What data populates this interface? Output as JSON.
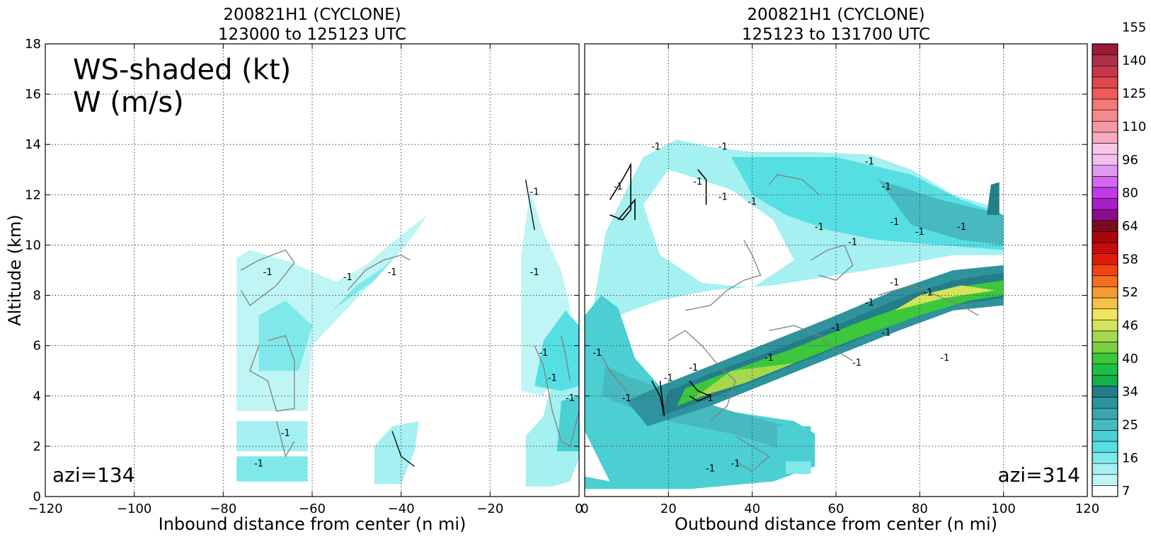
{
  "chart_data": [
    {
      "type": "heatmap",
      "title": "200821H1 (CYCLONE)",
      "subtitle": "123000 to 125123 UTC",
      "xlabel": "Inbound distance from center (n mi)",
      "ylabel": "Altitude (km)",
      "xlim": [
        -120,
        0
      ],
      "ylim": [
        0,
        18
      ],
      "x_ticks": [
        -120,
        -100,
        -80,
        -60,
        -40,
        -20,
        0
      ],
      "y_ticks": [
        0,
        2,
        4,
        6,
        8,
        10,
        12,
        14,
        16,
        18
      ],
      "grid": true,
      "annotations": [
        "WS-shaded (kt)",
        "W (m/s)",
        "azi=134"
      ],
      "contour_labels": [
        "-1",
        "1"
      ],
      "regions": [
        {
          "name": "inner-echo",
          "x": [
            -8,
            0
          ],
          "y": [
            0.4,
            7.5
          ],
          "level": 16
        },
        {
          "name": "left-column",
          "x": [
            -77,
            -61
          ],
          "y": [
            0.6,
            9.8
          ],
          "level": 10
        },
        {
          "name": "middle-patch",
          "x": [
            -60,
            -38
          ],
          "y": [
            5.8,
            11.2
          ],
          "level": 10
        },
        {
          "name": "lower-fragment",
          "x": [
            -46,
            -36
          ],
          "y": [
            0.5,
            3.0
          ],
          "level": 13
        }
      ]
    },
    {
      "type": "heatmap",
      "title": "200821H1 (CYCLONE)",
      "subtitle": "125123 to 131700 UTC",
      "xlabel": "Outbound distance from center (n mi)",
      "ylabel": "",
      "xlim": [
        0,
        120
      ],
      "ylim": [
        0,
        18
      ],
      "x_ticks": [
        0,
        20,
        40,
        60,
        80,
        100,
        120
      ],
      "y_ticks": [
        0,
        2,
        4,
        6,
        8,
        10,
        12,
        14,
        16,
        18
      ],
      "grid": true,
      "annotations": [
        "azi=314"
      ],
      "contour_labels": [
        "-1",
        "1"
      ],
      "regions": [
        {
          "name": "upper-outflow",
          "x": [
            2,
            100
          ],
          "y": [
            7.5,
            14.2
          ],
          "level": 16
        },
        {
          "name": "lower-eyewall",
          "x": [
            0,
            55
          ],
          "y": [
            0.3,
            8.0
          ],
          "level": 22
        },
        {
          "name": "max-wind-band",
          "x": [
            15,
            100
          ],
          "y": [
            2.5,
            9.5
          ],
          "level": 40
        }
      ]
    }
  ],
  "colorbar": {
    "tick_labels": [
      "7",
      "16",
      "25",
      "34",
      "40",
      "46",
      "52",
      "58",
      "64",
      "80",
      "96",
      "110",
      "125",
      "140",
      "155"
    ],
    "colors": [
      "#ffffff",
      "#c0f5f5",
      "#a5f0f0",
      "#7fe8e8",
      "#55dfe3",
      "#4ccfd3",
      "#47b9bf",
      "#3aa6ae",
      "#2e939c",
      "#247e8a",
      "#12b04a",
      "#1fbe44",
      "#3cc73c",
      "#79cf44",
      "#a5d84c",
      "#d3e45a",
      "#f0e560",
      "#f6c24c",
      "#f79a34",
      "#f4701e",
      "#f04414",
      "#e11b0c",
      "#c80c0c",
      "#a6080c",
      "#7c0a1e",
      "#8a0e8a",
      "#a81ec8",
      "#c33be8",
      "#d468f0",
      "#e198f0",
      "#f0c0f0",
      "#f6c8e4",
      "#f7aac2",
      "#f598a6",
      "#f38a8e",
      "#f47878",
      "#ef5a5a",
      "#e04848",
      "#c6384a",
      "#b02e48",
      "#9a1a3a"
    ]
  }
}
